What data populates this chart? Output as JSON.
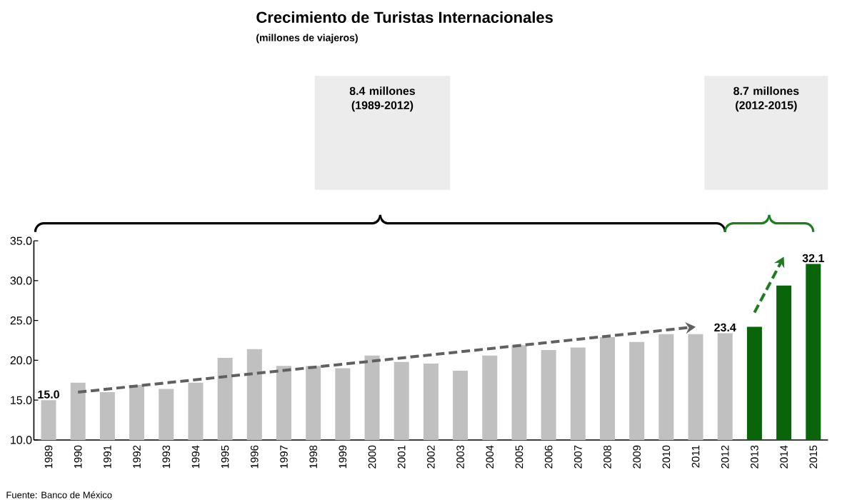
{
  "chart_data": {
    "type": "bar",
    "title": "Crecimiento de Turistas Internacionales",
    "subtitle": "(millones de viajeros)",
    "categories": [
      "1989",
      "1990",
      "1991",
      "1992",
      "1993",
      "1994",
      "1995",
      "1996",
      "1997",
      "1998",
      "1999",
      "2000",
      "2001",
      "2002",
      "2003",
      "2004",
      "2005",
      "2006",
      "2007",
      "2008",
      "2009",
      "2010",
      "2011",
      "2012",
      "2013",
      "2014",
      "2015"
    ],
    "series": [
      {
        "colors": [
          "#c0c0c0",
          "#c0c0c0",
          "#c0c0c0",
          "#c0c0c0",
          "#c0c0c0",
          "#c0c0c0",
          "#c0c0c0",
          "#c0c0c0",
          "#c0c0c0",
          "#c0c0c0",
          "#c0c0c0",
          "#c0c0c0",
          "#c0c0c0",
          "#c0c0c0",
          "#c0c0c0",
          "#c0c0c0",
          "#c0c0c0",
          "#c0c0c0",
          "#c0c0c0",
          "#c0c0c0",
          "#c0c0c0",
          "#c0c0c0",
          "#c0c0c0",
          "#c0c0c0",
          "#0a640a",
          "#0a640a",
          "#0a640a"
        ],
        "values": [
          15.0,
          17.2,
          16.0,
          16.9,
          16.4,
          17.2,
          20.3,
          21.4,
          19.3,
          19.3,
          19.0,
          20.6,
          19.8,
          19.6,
          18.7,
          20.6,
          21.9,
          21.3,
          21.6,
          22.9,
          22.3,
          23.3,
          23.3,
          23.4,
          24.2,
          29.4,
          32.1
        ],
        "value_labels": [
          "15.0",
          null,
          null,
          null,
          null,
          null,
          null,
          null,
          null,
          null,
          null,
          null,
          null,
          null,
          null,
          null,
          null,
          null,
          null,
          null,
          null,
          null,
          null,
          "23.4",
          null,
          null,
          "32.1"
        ]
      }
    ],
    "ylim": [
      10,
      35
    ],
    "yticks": [
      {
        "value": 10,
        "label": "10.0"
      },
      {
        "value": 15,
        "label": "15.0"
      },
      {
        "value": 20,
        "label": "20.0"
      },
      {
        "value": 25,
        "label": "25.0"
      },
      {
        "value": 30,
        "label": "30.0"
      },
      {
        "value": 35,
        "label": "35.0"
      }
    ],
    "annotations": [
      "8.4 millones (1989-2012)",
      "8.7 millones (2012-2015)",
      "Fuente: Banco de México"
    ]
  }
}
